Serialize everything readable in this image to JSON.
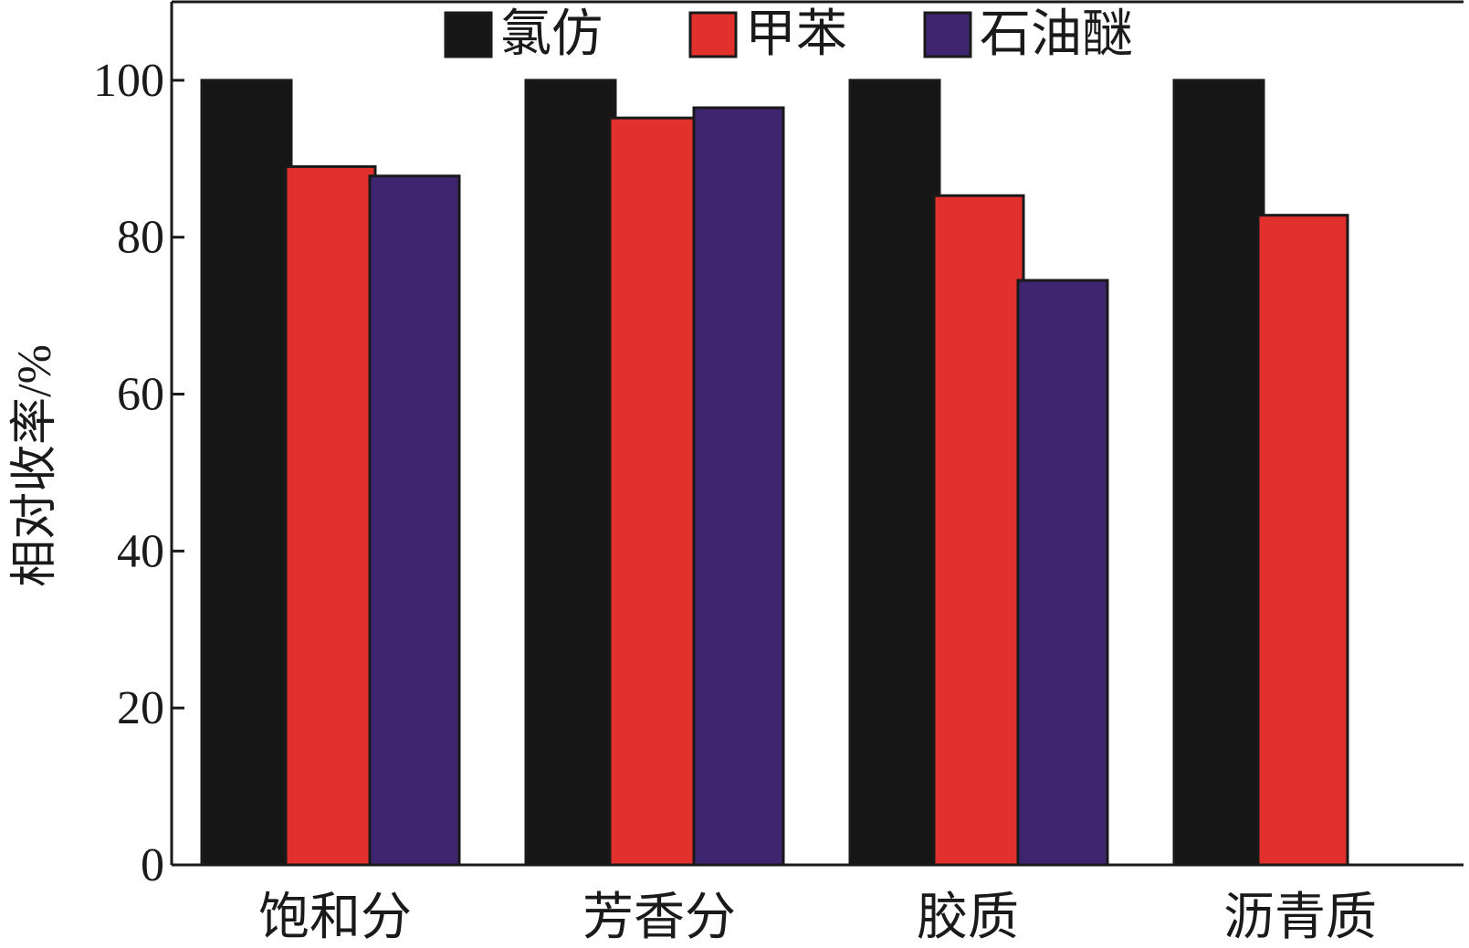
{
  "chart_data": {
    "type": "bar",
    "title": "",
    "xlabel": "",
    "ylabel": "相对收率/%",
    "ylim": [
      0,
      110
    ],
    "yticks": [
      0,
      20,
      40,
      60,
      80,
      100
    ],
    "grid": false,
    "legend_position": "top-center",
    "categories": [
      "饱和分",
      "芳香分",
      "胶质",
      "沥青质"
    ],
    "series": [
      {
        "name": "氯仿",
        "color": "#161616",
        "values": [
          100,
          100,
          100,
          100
        ]
      },
      {
        "name": "甲苯",
        "color": "#e2312d",
        "values": [
          89,
          95.2,
          85.3,
          82.8
        ]
      },
      {
        "name": "石油醚",
        "color": "#3f2470",
        "values": [
          87.8,
          96.5,
          74.5,
          null
        ]
      }
    ]
  }
}
